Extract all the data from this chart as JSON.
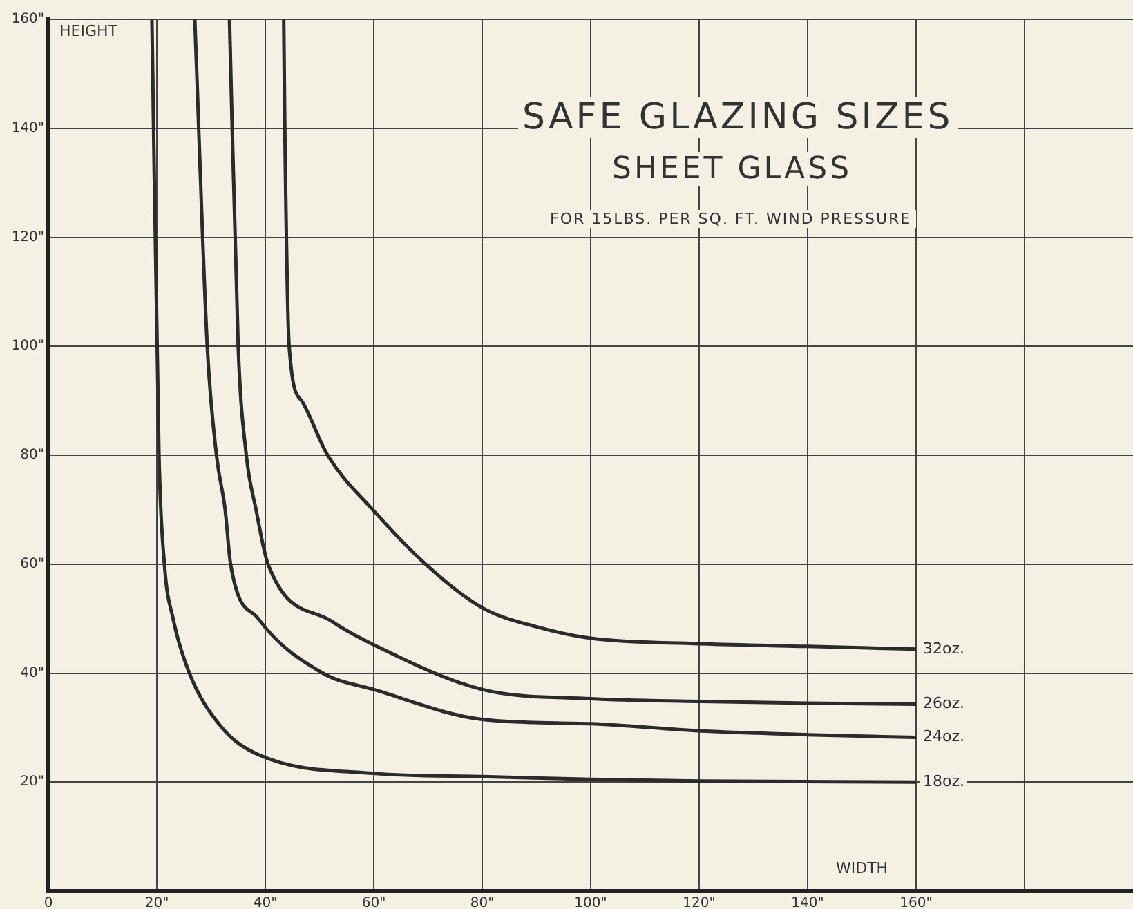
{
  "chart_data": {
    "type": "line",
    "title": "SAFE GLAZING SIZES",
    "subtitle": "SHEET GLASS",
    "annotations": [
      "FOR 15LBS. PER SQ. FT. WIND PRESSURE"
    ],
    "xlabel": "WIDTH",
    "ylabel": "HEIGHT",
    "xlim": [
      0,
      200
    ],
    "ylim": [
      0,
      160
    ],
    "xticks": [
      0,
      {
        "value": 20,
        "label": "20\""
      },
      {
        "value": 40,
        "label": "40\""
      },
      {
        "value": 60,
        "label": "60\""
      },
      {
        "value": 80,
        "label": "80\""
      },
      {
        "value": 100,
        "label": "100\""
      },
      {
        "value": 120,
        "label": "120\""
      },
      {
        "value": 140,
        "label": "140\""
      },
      {
        "value": 160,
        "label": "160\""
      },
      {
        "value": 180,
        "label": null
      }
    ],
    "yticks": [
      {
        "value": 20,
        "label": "20\""
      },
      {
        "value": 40,
        "label": "40\""
      },
      {
        "value": 60,
        "label": "60\""
      },
      {
        "value": 80,
        "label": "80\""
      },
      {
        "value": 100,
        "label": "100\""
      },
      {
        "value": 120,
        "label": "120\""
      },
      {
        "value": 140,
        "label": "140\""
      },
      {
        "value": 160,
        "label": "160\""
      }
    ],
    "grid": true,
    "marker": "none",
    "line_style": "solid",
    "legend": false,
    "series": [
      {
        "name": "32oz.",
        "color": "#2b2b2b",
        "x": [
          43.4,
          43.6,
          44.4,
          46.7,
          51.5,
          60,
          70,
          80,
          90,
          100,
          120,
          140,
          160
        ],
        "values": [
          160,
          140,
          100,
          90,
          80,
          69.8,
          59.6,
          52,
          48.5,
          46.4,
          45.4,
          44.9,
          44.4
        ]
      },
      {
        "name": "26oz.",
        "color": "#2b2b2b",
        "x": [
          33.4,
          35,
          36.5,
          38.3,
          40.5,
          52.3,
          60,
          80,
          100,
          120,
          140,
          160
        ],
        "values": [
          160,
          100,
          80,
          70,
          60,
          49.5,
          45.2,
          37,
          35.3,
          34.8,
          34.5,
          34.3
        ]
      },
      {
        "name": "24oz.",
        "color": "#2b2b2b",
        "x": [
          27,
          29.3,
          31,
          32.6,
          33.6,
          38.7,
          50.6,
          60,
          80,
          100,
          120,
          140,
          160
        ],
        "values": [
          160,
          100,
          80,
          70,
          60,
          50,
          40,
          37,
          31.5,
          30.7,
          29.4,
          28.7,
          28.2
        ]
      },
      {
        "name": "18oz.",
        "color": "#2b2b2b",
        "x": [
          19.1,
          20.4,
          21.4,
          23,
          26,
          32,
          38.8,
          60,
          80,
          100,
          120,
          160
        ],
        "values": [
          160,
          80,
          60,
          50,
          40,
          30,
          25,
          21.6,
          21,
          20.5,
          20.2,
          20
        ]
      }
    ]
  }
}
